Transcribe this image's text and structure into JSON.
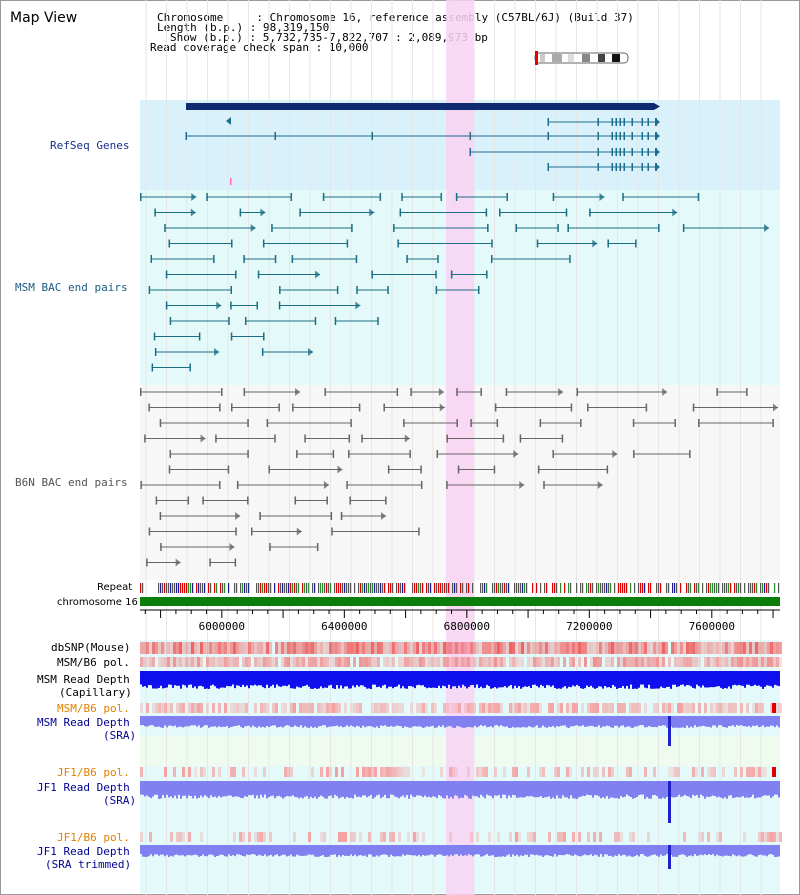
{
  "title": "Map View",
  "header": {
    "chromosome_line": "Chromosome     : Chromosome 16, reference assembly (C57BL/6J) (Build 37)",
    "length_line": "Length (b.p.) : 98,319,150",
    "show_line": "Show (b.p.) : 5,732,735-7,822,707 : 2,089,973 bp",
    "coverage_line": "Read coverage check span : 10,000"
  },
  "tracks": {
    "refseq": "RefSeq Genes",
    "msm_bac": "MSM BAC end pairs",
    "b6n_bac": "B6N BAC end pairs",
    "repeat": "Repeat",
    "chromosome": "chromosome 16",
    "dbsnp": "dbSNP(Mouse)",
    "msm_b6_pol_1": "MSM/B6 pol.",
    "msm_depth_cap_1": "MSM Read Depth",
    "msm_depth_cap_2": "(Capillary)",
    "msm_b6_pol_2": "MSM/B6 pol.",
    "msm_depth_sra_1": "MSM Read Depth",
    "msm_depth_sra_2": "(SRA)",
    "jf1_pol_1": "JF1/B6 pol.",
    "jf1_depth_sra_1": "JF1 Read Depth",
    "jf1_depth_sra_2": "(SRA)",
    "jf1_pol_2": "JF1/B6 pol.",
    "jf1_depth_trim_1": "JF1 Read Depth",
    "jf1_depth_trim_2": "(SRA trimmed)"
  },
  "axis": {
    "ticks": [
      {
        "value": 6000000,
        "label": "6000000"
      },
      {
        "value": 6400000,
        "label": "6400000"
      },
      {
        "value": 6800000,
        "label": "6800000"
      },
      {
        "value": 7200000,
        "label": "7200000"
      },
      {
        "value": 7600000,
        "label": "7600000"
      }
    ],
    "range": [
      5732735,
      7822707
    ]
  },
  "colors": {
    "refseq_bg": "#d9f1fb",
    "msm_bg": "#e4fafa",
    "b6n_bg": "#f7f7f7",
    "highlight": "#f9d2f2",
    "gene": "#1d6d8f",
    "gene_bar": "#0f2a6e",
    "msm_pair": "#1b6e84",
    "b6n_pair": "#666666",
    "chrom": "#0b7d0b",
    "snp": "#f08080",
    "depth_cap": "#1010ee",
    "depth_sra": "#8080f0",
    "pol_label": "#e08000",
    "depth_label": "#000090"
  }
}
